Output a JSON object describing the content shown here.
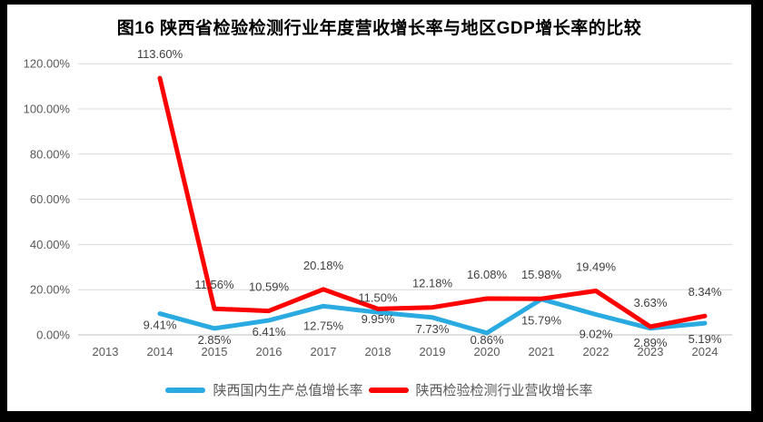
{
  "frame": {
    "background_color": "#000000"
  },
  "chart_data": {
    "type": "line",
    "title": "图16  陕西省检验检测行业年度营收增长率与地区GDP增长率的比较",
    "categories": [
      "2013",
      "2014",
      "2015",
      "2016",
      "2017",
      "2018",
      "2019",
      "2020",
      "2021",
      "2022",
      "2023",
      "2024"
    ],
    "xlabel": "",
    "ylabel": "",
    "ylim": [
      0,
      120
    ],
    "ytick_step": 20,
    "yticks": [
      "0.00%",
      "20.00%",
      "40.00%",
      "60.00%",
      "80.00%",
      "100.00%",
      "120.00%"
    ],
    "grid": true,
    "legend_position": "bottom",
    "series": [
      {
        "id": "gdp",
        "name": "陕西国内生产总值增长率",
        "color": "#29ABE2",
        "label_position": "below",
        "values": [
          null,
          9.41,
          2.85,
          6.41,
          12.75,
          9.95,
          7.73,
          0.86,
          15.79,
          9.02,
          2.89,
          5.19
        ],
        "labels": [
          null,
          "9.41%",
          "2.85%",
          "6.41%",
          "12.75%",
          "9.95%",
          "7.73%",
          "0.86%",
          "15.79%",
          "9.02%",
          "2.89%",
          "5.19%"
        ]
      },
      {
        "id": "testing",
        "name": "陕西检验检测行业营收增长率",
        "color": "#FF0000",
        "label_position": "above",
        "values": [
          null,
          113.6,
          11.56,
          10.59,
          20.18,
          11.5,
          12.18,
          16.08,
          15.98,
          19.49,
          3.63,
          8.34
        ],
        "labels": [
          null,
          "113.60%",
          "11.56%",
          "10.59%",
          "20.18%",
          "11.50%",
          "12.18%",
          "16.08%",
          "15.98%",
          "19.49%",
          "3.63%",
          "8.34%"
        ]
      }
    ]
  }
}
